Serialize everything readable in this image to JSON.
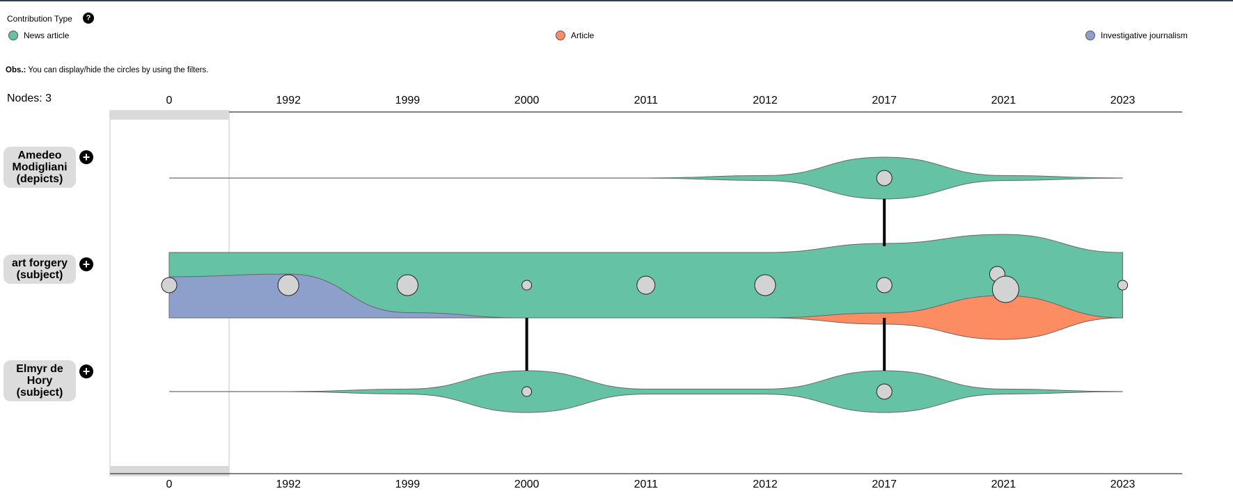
{
  "legend": {
    "title": "Contribution Type",
    "help": "?",
    "items": [
      {
        "label": "News article",
        "color": "#66c2a5"
      },
      {
        "label": "Article",
        "color": "#fc8d62"
      },
      {
        "label": "Investigative journalism",
        "color": "#8da0cb"
      }
    ]
  },
  "obs": {
    "prefix": "Obs.:",
    "text": " You can display/hide the circles by using the filters."
  },
  "nodes_label": "Nodes: 3",
  "nodes": [
    {
      "label": "Amedeo Modigliani (depicts)",
      "lines": [
        "Amedeo",
        "Modigliani",
        "(depicts)"
      ]
    },
    {
      "label": "art forgery (subject)",
      "lines": [
        "art forgery",
        "(subject)"
      ]
    },
    {
      "label": "Elmyr de Hory (subject)",
      "lines": [
        "Elmyr de",
        "Hory",
        "(subject)"
      ]
    }
  ],
  "plus_icon": "+",
  "colors": {
    "news_article": "#66c2a5",
    "article": "#fc8d62",
    "investigative": "#8da0cb",
    "circle_fill": "#d3d3d3"
  },
  "chart_data": {
    "type": "scatter",
    "x": [
      "0",
      "1992",
      "1999",
      "2000",
      "2011",
      "2012",
      "2017",
      "2021",
      "2023"
    ],
    "series": [
      {
        "name": "Amedeo Modigliani (depicts)",
        "stream": {
          "News article": [
            0,
            0,
            0,
            0,
            0,
            0,
            3,
            0,
            0
          ]
        },
        "circles": [
          {
            "x": "2017",
            "size": 2
          }
        ]
      },
      {
        "name": "art forgery (subject)",
        "stream": {
          "News article": [
            5,
            5,
            5,
            5,
            5,
            5,
            5,
            5,
            5
          ],
          "Investigative journalism": [
            0,
            3,
            0,
            0,
            0,
            0,
            0,
            0,
            0
          ],
          "Article": [
            0,
            0,
            0,
            0,
            0,
            0,
            0,
            3,
            0
          ]
        },
        "circles": [
          {
            "x": "0",
            "size": 2
          },
          {
            "x": "1992",
            "size": 3
          },
          {
            "x": "1999",
            "size": 3
          },
          {
            "x": "2000",
            "size": 1
          },
          {
            "x": "2011",
            "size": 2.5
          },
          {
            "x": "2012",
            "size": 3
          },
          {
            "x": "2017",
            "size": 2
          },
          {
            "x": "2021",
            "size": 2
          },
          {
            "x": "2021",
            "size": 4
          },
          {
            "x": "2023",
            "size": 1
          }
        ]
      },
      {
        "name": "Elmyr de Hory (subject)",
        "stream": {
          "News article": [
            0,
            0,
            0,
            3,
            0,
            0,
            3,
            0,
            0
          ]
        },
        "circles": [
          {
            "x": "2000",
            "size": 1
          },
          {
            "x": "2017",
            "size": 2
          }
        ]
      }
    ],
    "links": [
      {
        "x": "2017",
        "from": "Amedeo Modigliani (depicts)",
        "to": "art forgery (subject)"
      },
      {
        "x": "2000",
        "from": "art forgery (subject)",
        "to": "Elmyr de Hory (subject)"
      },
      {
        "x": "2017",
        "from": "art forgery (subject)",
        "to": "Elmyr de Hory (subject)"
      }
    ]
  }
}
